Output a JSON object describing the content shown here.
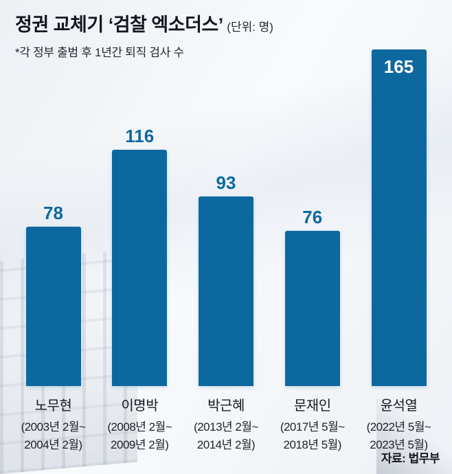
{
  "header": {
    "title": "정권 교체기 ‘검찰 엑소더스’",
    "unit": "(단위: 명)",
    "subtitle": "*각 정부 출범 후 1년간 퇴직 검사 수"
  },
  "chart_data": {
    "type": "bar",
    "title": "정권 교체기 ‘검찰 엑소더스’",
    "unit_label": "(단위: 명)",
    "note": "*각 정부 출범 후 1년간 퇴직 검사 수",
    "categories": [
      "노무현",
      "이명박",
      "박근혜",
      "문재인",
      "윤석열"
    ],
    "category_periods": [
      [
        "(2003년 2월~",
        "2004년 2월)"
      ],
      [
        "(2008년 2월~",
        "2009년 2월)"
      ],
      [
        "(2013년 2월~",
        "2014년 2월)"
      ],
      [
        "(2017년 5월~",
        "2018년 5월)"
      ],
      [
        "(2022년 5월~",
        "2023년 5월)"
      ]
    ],
    "values": [
      78,
      116,
      93,
      76,
      165
    ],
    "value_label_position": [
      "above",
      "above",
      "above",
      "above",
      "inside"
    ],
    "ylim": [
      0,
      165
    ],
    "grid": false,
    "legend": "none",
    "bar_color": "#0d689f",
    "value_color_outside": "#0d689f",
    "value_color_inside": "#ffffff",
    "source": "자료: 법무부"
  },
  "footer": {
    "source": "자료: 법무부"
  }
}
